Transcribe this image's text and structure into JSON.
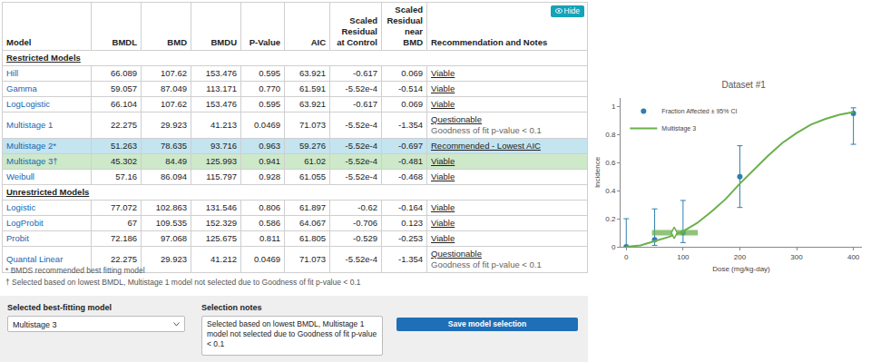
{
  "table": {
    "hide_button": "Hide",
    "columns": [
      "Model",
      "BMDL",
      "BMD",
      "BMDU",
      "P-Value",
      "AIC",
      "Scaled Residual at Control",
      "Scaled Residual near BMD",
      "Recommendation and Notes"
    ],
    "groups": [
      {
        "title": "Restricted Models",
        "rows": [
          {
            "cells": [
              "Hill",
              "66.089",
              "107.62",
              "153.476",
              "0.595",
              "63.921",
              "-0.617",
              "0.069",
              "Viable"
            ]
          },
          {
            "cells": [
              "Gamma",
              "59.057",
              "87.049",
              "113.171",
              "0.770",
              "61.591",
              "-5.52e-4",
              "-0.514",
              "Viable"
            ]
          },
          {
            "cells": [
              "LogLogistic",
              "66.104",
              "107.62",
              "153.476",
              "0.595",
              "63.921",
              "-0.617",
              "0.069",
              "Viable"
            ]
          },
          {
            "cells": [
              "Multistage 1",
              "22.275",
              "29.923",
              "41.213",
              "0.0469",
              "71.073",
              "-5.52e-4",
              "-1.354",
              "Questionable"
            ],
            "note": "Goodness of fit p-value < 0.1"
          },
          {
            "cells": [
              "Multistage 2*",
              "51.263",
              "78.635",
              "93.716",
              "0.963",
              "59.276",
              "-5.52e-4",
              "-0.697",
              "Recommended - Lowest AIC"
            ]
          },
          {
            "cells": [
              "Multistage 3†",
              "45.302",
              "84.49",
              "125.993",
              "0.941",
              "61.02",
              "-5.52e-4",
              "-0.481",
              "Viable"
            ]
          },
          {
            "cells": [
              "Weibull",
              "57.16",
              "86.094",
              "115.797",
              "0.928",
              "61.055",
              "-5.52e-4",
              "-0.468",
              "Viable"
            ]
          }
        ]
      },
      {
        "title": "Unrestricted Models",
        "rows": [
          {
            "cells": [
              "Logistic",
              "77.072",
              "102.863",
              "131.546",
              "0.806",
              "61.897",
              "-0.62",
              "-0.164",
              "Viable"
            ]
          },
          {
            "cells": [
              "LogProbit",
              "67",
              "109.535",
              "152.329",
              "0.586",
              "64.067",
              "-0.706",
              "0.123",
              "Viable"
            ]
          },
          {
            "cells": [
              "Probit",
              "72.186",
              "97.068",
              "125.675",
              "0.811",
              "61.805",
              "-0.529",
              "-0.253",
              "Viable"
            ]
          },
          {
            "cells": [
              "Quantal Linear",
              "22.275",
              "29.923",
              "41.212",
              "0.0469",
              "71.073",
              "-5.52e-4",
              "-1.354",
              "Questionable"
            ],
            "note": "Goodness of fit p-value < 0.1"
          }
        ]
      }
    ]
  },
  "footnotes": [
    "* BMDS recommended best fitting model",
    "† Selected based on lowest BMDL, Multistage 1 model not selected due to Goodness of fit p-value < 0.1"
  ],
  "selection": {
    "model_label": "Selected best-fitting model",
    "model": "Multistage 3",
    "notes_label": "Selection notes",
    "notes": "Selected based on lowest BMDL, Multistage 1 model not selected due to Goodness of fit p-value < 0.1",
    "button": "Save model selection"
  },
  "chart_data": {
    "type": "scatter",
    "title": "Dataset #1",
    "x_label": "Dose (mg/kg-day)",
    "y_label": "Incidence",
    "xlim": [
      -10,
      415
    ],
    "xticks": [
      0,
      100,
      200,
      300,
      400
    ],
    "ylim": [
      0,
      1.06
    ],
    "yticks": [
      0,
      0.2,
      0.4,
      0.6,
      0.8,
      1
    ],
    "grid": false,
    "legend": "upper left",
    "series": [
      {
        "name": "Fraction Affected ± 95% CI",
        "type": "scatter",
        "marker": "circle",
        "color": "#2f7fae",
        "x": [
          0,
          50,
          100,
          200,
          400
        ],
        "values": [
          0,
          0.05,
          0.1,
          0.5,
          0.95
        ],
        "ci_lower": [
          0,
          0.01,
          0.03,
          0.28,
          0.73
        ],
        "ci_upper": [
          0.2,
          0.27,
          0.33,
          0.72,
          0.99
        ]
      },
      {
        "name": "Multistage 3",
        "type": "line",
        "line_style": "solid",
        "color": "#6ab04c",
        "x": [
          0,
          25,
          50,
          75,
          100,
          125,
          150,
          175,
          200,
          225,
          250,
          275,
          300,
          325,
          350,
          375,
          400
        ],
        "values": [
          0,
          0.01,
          0.04,
          0.07,
          0.11,
          0.17,
          0.25,
          0.34,
          0.45,
          0.55,
          0.65,
          0.74,
          0.81,
          0.87,
          0.91,
          0.94,
          0.96
        ]
      }
    ],
    "bmd": {
      "bmdl": 45.302,
      "bmd": 84.49,
      "bmdu": 125.993,
      "response": 0.1,
      "color": "#6ab04c"
    }
  }
}
